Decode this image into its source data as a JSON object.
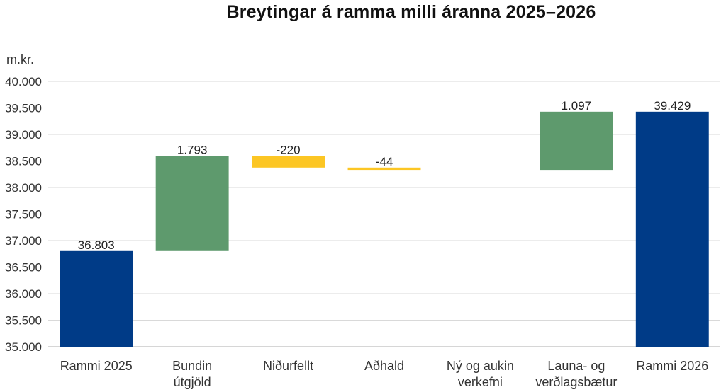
{
  "chart_data": {
    "type": "waterfall",
    "title": "Breytingar á ramma milli áranna 2025–2026",
    "unit_label": "m.kr.",
    "ylim": [
      35000,
      40000
    ],
    "yticks": [
      "35.000",
      "35.500",
      "36.000",
      "36.500",
      "37.000",
      "37.500",
      "38.000",
      "38.500",
      "39.000",
      "39.500",
      "40.000"
    ],
    "categories": [
      [
        "Rammi 2025"
      ],
      [
        "Bundin",
        "útgjöld"
      ],
      [
        "Niðurfellt"
      ],
      [
        "Aðhald"
      ],
      [
        "Ný og aukin",
        "verkefni"
      ],
      [
        "Launa- og",
        "verðlagsbætur"
      ],
      [
        "Rammi 2026"
      ]
    ],
    "bars": [
      {
        "kind": "total",
        "base": 35000,
        "value": 36803,
        "label": "36.803",
        "color": "#003b87"
      },
      {
        "kind": "increase",
        "base": 36803,
        "value": 1793,
        "label": "1.793",
        "color": "#5e9a6d"
      },
      {
        "kind": "decrease",
        "base": 38596,
        "value": -220,
        "label": "-220",
        "color": "#fcc624"
      },
      {
        "kind": "decrease",
        "base": 38376,
        "value": -44,
        "label": "-44",
        "color": "#fcc624"
      },
      {
        "kind": "increase",
        "base": 38332,
        "value": 0,
        "label": "",
        "color": "#5e9a6d"
      },
      {
        "kind": "increase",
        "base": 38332,
        "value": 1097,
        "label": "1.097",
        "color": "#5e9a6d"
      },
      {
        "kind": "total",
        "base": 35000,
        "value": 39429,
        "label": "39.429",
        "color": "#003b87"
      }
    ],
    "grid": true,
    "legend": "none"
  }
}
